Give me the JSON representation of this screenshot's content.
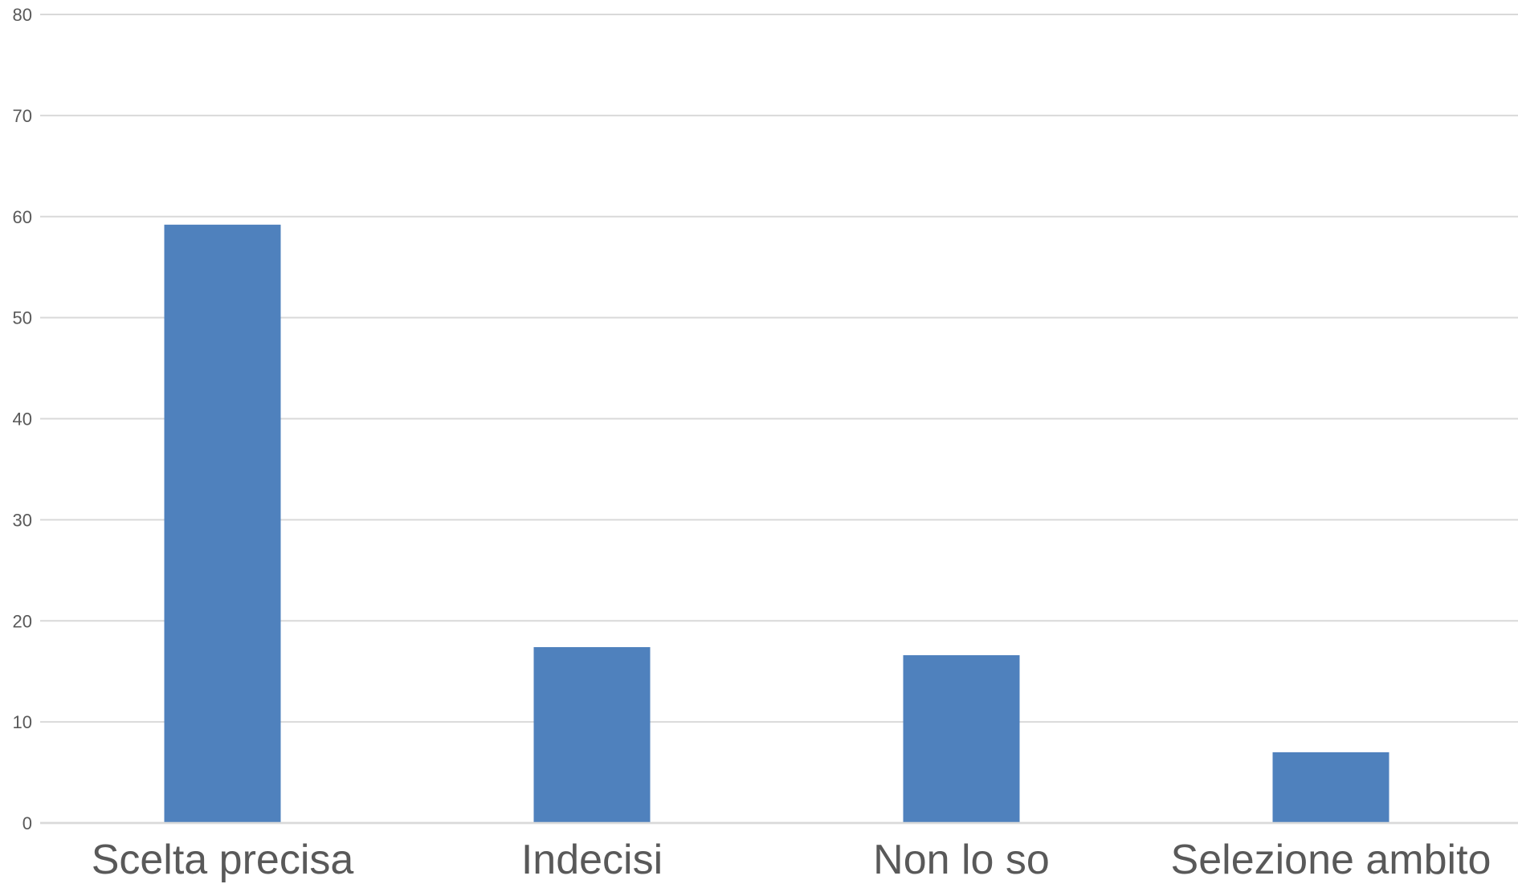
{
  "chart_data": {
    "type": "bar",
    "title": "",
    "xlabel": "",
    "ylabel": "",
    "categories": [
      "Scelta precisa",
      "Indecisi",
      "Non lo so",
      "Selezione ambito"
    ],
    "values": [
      59.2,
      17.4,
      16.6,
      7.0
    ],
    "ylim": [
      0,
      80
    ],
    "yticks": [
      0,
      10,
      20,
      30,
      40,
      50,
      60,
      70,
      80
    ],
    "grid": true,
    "legend": "none",
    "colors": {
      "bar": "#4f81bd",
      "grid": "#d9d9d9",
      "text": "#595959"
    }
  }
}
